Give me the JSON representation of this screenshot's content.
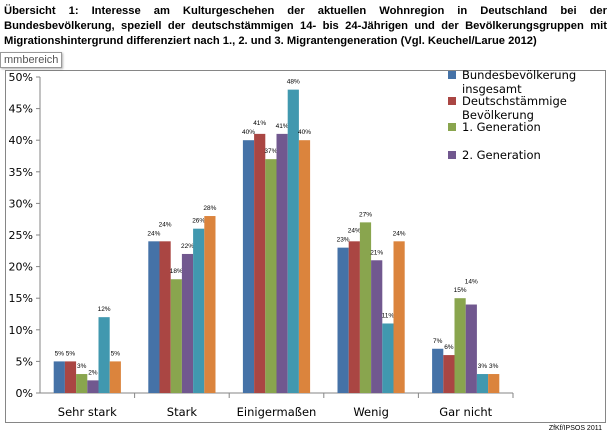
{
  "caption": "Übersicht 1: Interesse am Kulturgeschehen der aktuellen Wohnregion in Deutschland bei der Bundesbevölkerung, speziell der deutschstämmigen 14- bis 24-Jährigen und der Bevölkerungsgruppen mit Migrationshintergrund differenziert nach 1., 2. und 3. Migrantengeneration (Vgl. Keuchel/Larue 2012)",
  "tooltip": "mmbereich",
  "credit": "ZfKf/IPSOS 2011",
  "chart_data": {
    "type": "bar",
    "categories": [
      "Sehr stark",
      "Stark",
      "Einigermaßen",
      "Wenig",
      "Gar nicht"
    ],
    "ylim": [
      0,
      50
    ],
    "yticks": [
      "0%",
      "5%",
      "10%",
      "15%",
      "20%",
      "25%",
      "30%",
      "35%",
      "40%",
      "45%",
      "50%"
    ],
    "grid": false,
    "legend": "top-right",
    "series": [
      {
        "name": "Bundesbevölkerung insgesamt",
        "legend_lines": [
          "Bundesbevölkerung",
          "insgesamt"
        ],
        "color": "#4572a7",
        "values": [
          5,
          24,
          40,
          23,
          7
        ]
      },
      {
        "name": "Deutschstämmige Bevölkerung",
        "legend_lines": [
          "Deutschstämmige",
          "Bevölkerung"
        ],
        "color": "#aa4643",
        "values": [
          5,
          24,
          41,
          24,
          6
        ]
      },
      {
        "name": "1. Generation",
        "legend_lines": [
          "1. Generation"
        ],
        "color": "#89a54e",
        "values": [
          3,
          18,
          37,
          27,
          15
        ]
      },
      {
        "name": "2. Generation",
        "legend_lines": [
          "2. Generation"
        ],
        "color": "#71588f",
        "values": [
          2,
          22,
          41,
          21,
          14
        ]
      },
      {
        "color": "#4198af",
        "values": [
          12,
          26,
          48,
          11,
          3
        ]
      },
      {
        "color": "#db843d",
        "values": [
          5,
          28,
          40,
          24,
          3
        ]
      }
    ]
  }
}
